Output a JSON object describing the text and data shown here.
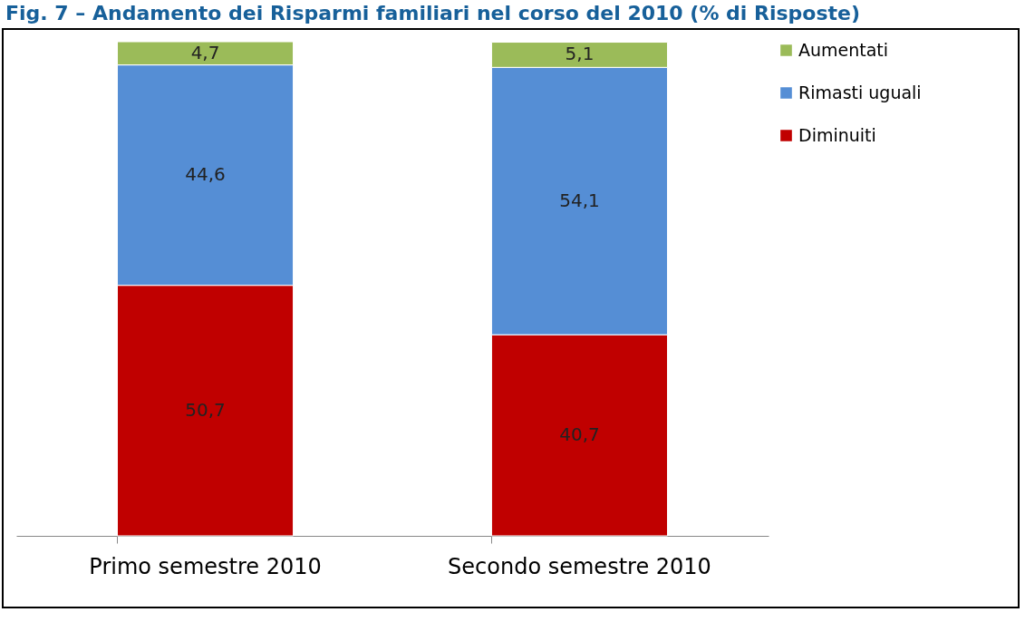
{
  "chart_data": {
    "type": "bar",
    "title": "Fig. 7 – Andamento dei Risparmi familiari nel corso del 2010 (% di Risposte)",
    "categories": [
      "Primo semestre 2010",
      "Secondo semestre 2010"
    ],
    "stacked": true,
    "legend": "right",
    "grid": false,
    "series": [
      {
        "name": "Diminuiti",
        "color": "#c00000",
        "values": [
          50.7,
          40.7
        ],
        "value_labels": [
          "50,7",
          "40,7"
        ]
      },
      {
        "name": "Rimasti uguali",
        "color": "#558ed5",
        "values": [
          44.6,
          54.1
        ],
        "value_labels": [
          "44,6",
          "54,1"
        ]
      },
      {
        "name": "Aumentati",
        "color": "#9bbb59",
        "values": [
          4.7,
          5.1
        ],
        "value_labels": [
          "4,7",
          "5,1"
        ]
      }
    ]
  }
}
